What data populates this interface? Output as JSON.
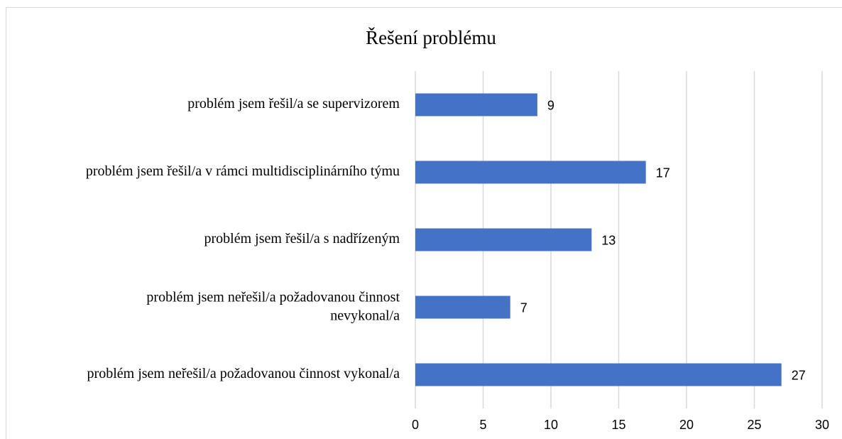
{
  "chart_data": {
    "type": "barh",
    "title": "Řešení problému",
    "categories": [
      "problém jsem řešil/a se supervizorem",
      "problém jsem řešil/a v rámci multidisciplinárního týmu",
      "problém jsem řešil/a s nadřízeným",
      "problém jsem neřešil/a požadovanou činnost\nnevykonal/a",
      "problém jsem neřešil/a požadovanou činnost vykonal/a"
    ],
    "values": [
      9,
      17,
      13,
      7,
      27
    ],
    "color": "#4472c4",
    "xlim": [
      0,
      30
    ],
    "xticks": [
      0,
      5,
      10,
      15,
      20,
      25,
      30
    ],
    "grid": true
  }
}
